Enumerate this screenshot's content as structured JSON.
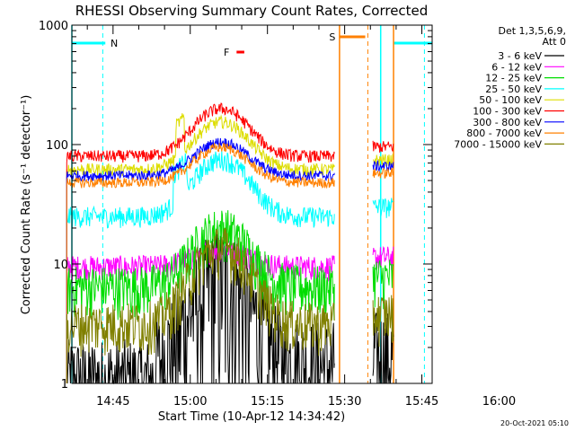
{
  "chart_data": {
    "type": "line",
    "title": "RHESSI Observing Summary Count Rates, Corrected",
    "xlabel": "Start Time (10-Apr-12 14:34:42)",
    "ylabel": "Corrected Count Rate (s⁻¹ detector⁻¹)",
    "y_scale": "log",
    "ylim": [
      1,
      1000
    ],
    "xlim_minutes": [
      -8,
      62
    ],
    "x_ticks": [
      {
        "label": "14:45",
        "min": 0
      },
      {
        "label": "15:00",
        "min": 15
      },
      {
        "label": "15:15",
        "min": 30
      },
      {
        "label": "15:30",
        "min": 45
      },
      {
        "label": "15:45",
        "min": 60
      },
      {
        "label": "16:00",
        "min": 75
      }
    ],
    "y_ticks": [
      "1",
      "10",
      "100",
      "1000"
    ],
    "legend_header": [
      "Det 1,3,5,6,9,",
      "Att 0"
    ],
    "timestamp": "20-Oct-2021 05:10",
    "flags": [
      {
        "label": "N",
        "color": "#00ffff"
      },
      {
        "label": "F",
        "color": "#ff0000"
      },
      {
        "label": "S",
        "color": "#ff8000"
      }
    ],
    "series": [
      {
        "name": "3 - 6 keV",
        "color": "#000000",
        "base": 1.4,
        "peak": 8.0,
        "noise": 0.35
      },
      {
        "name": "6 - 12 keV",
        "color": "#ff00ff",
        "base": 9.5,
        "peak": 13.5,
        "noise": 0.06
      },
      {
        "name": "12 - 25 keV",
        "color": "#00dd00",
        "base": 6.5,
        "peak": 20.0,
        "noise": 0.12
      },
      {
        "name": "25 - 50 keV",
        "color": "#00ffff",
        "base": 25.0,
        "peak": 75.0,
        "noise": 0.05
      },
      {
        "name": "50 - 100 keV",
        "color": "#dddd00",
        "base": 62.0,
        "peak": 155.0,
        "noise": 0.03
      },
      {
        "name": "100 - 300 keV",
        "color": "#ff0000",
        "base": 80.0,
        "peak": 200.0,
        "noise": 0.03
      },
      {
        "name": "300 - 800 keV",
        "color": "#0000ff",
        "base": 55.0,
        "peak": 105.0,
        "noise": 0.025
      },
      {
        "name": "800 - 7000 keV",
        "color": "#ff8000",
        "base": 48.0,
        "peak": 95.0,
        "noise": 0.025
      },
      {
        "name": "7000 - 15000 keV",
        "color": "#808000",
        "base": 3.2,
        "peak": 14.0,
        "noise": 0.12
      }
    ]
  }
}
